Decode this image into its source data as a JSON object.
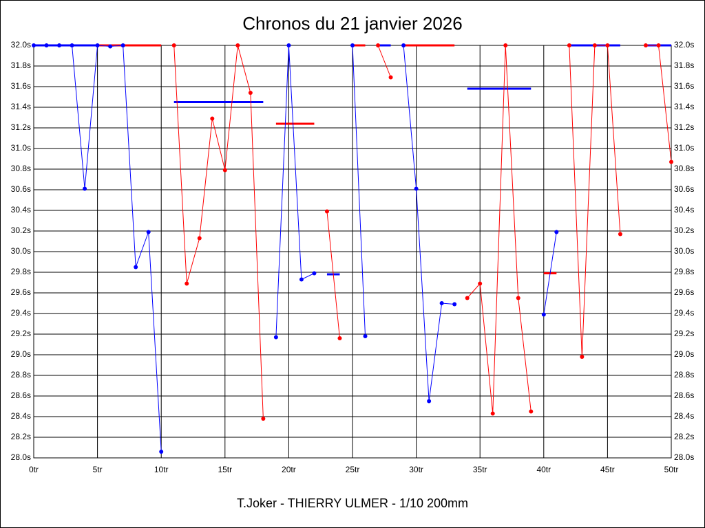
{
  "chart_data": {
    "type": "line",
    "title": "Chronos du 21 janvier 2026",
    "subtitle": "T.Joker - THIERRY ULMER - 1/10 200mm",
    "xlim": [
      0,
      50
    ],
    "xticks": [
      {
        "value": 0,
        "label": "0tr"
      },
      {
        "value": 5,
        "label": "5tr"
      },
      {
        "value": 10,
        "label": "10tr"
      },
      {
        "value": 15,
        "label": "15tr"
      },
      {
        "value": 20,
        "label": "20tr"
      },
      {
        "value": 25,
        "label": "25tr"
      },
      {
        "value": 30,
        "label": "30tr"
      },
      {
        "value": 35,
        "label": "35tr"
      },
      {
        "value": 40,
        "label": "40tr"
      },
      {
        "value": 45,
        "label": "45tr"
      },
      {
        "value": 50,
        "label": "50tr"
      }
    ],
    "ylim": [
      28.0,
      32.0
    ],
    "yticks": [
      {
        "value": 28.0,
        "label": "28.0s"
      },
      {
        "value": 28.2,
        "label": "28.2s"
      },
      {
        "value": 28.4,
        "label": "28.4s"
      },
      {
        "value": 28.6,
        "label": "28.6s"
      },
      {
        "value": 28.8,
        "label": "28.8s"
      },
      {
        "value": 29.0,
        "label": "29.0s"
      },
      {
        "value": 29.2,
        "label": "29.2s"
      },
      {
        "value": 29.4,
        "label": "29.4s"
      },
      {
        "value": 29.6,
        "label": "29.6s"
      },
      {
        "value": 29.8,
        "label": "29.8s"
      },
      {
        "value": 30.0,
        "label": "30.0s"
      },
      {
        "value": 30.2,
        "label": "30.2s"
      },
      {
        "value": 30.4,
        "label": "30.4s"
      },
      {
        "value": 30.6,
        "label": "30.6s"
      },
      {
        "value": 30.8,
        "label": "30.8s"
      },
      {
        "value": 31.0,
        "label": "31.0s"
      },
      {
        "value": 31.2,
        "label": "31.2s"
      },
      {
        "value": 31.4,
        "label": "31.4s"
      },
      {
        "value": 31.6,
        "label": "31.6s"
      },
      {
        "value": 31.8,
        "label": "31.8s"
      },
      {
        "value": 32.0,
        "label": "32.0s"
      }
    ],
    "grid": true,
    "series": [
      {
        "color": "#0000ff",
        "x": [
          0,
          1,
          2,
          3,
          4,
          5,
          6,
          7,
          8,
          9,
          10
        ],
        "values": [
          32.0,
          32.0,
          32.0,
          32.0,
          30.61,
          32.0,
          31.99,
          32.0,
          29.85,
          30.19,
          28.06
        ]
      },
      {
        "color": "#ff0000",
        "x": [
          11,
          12,
          13,
          14,
          15,
          16,
          17,
          18
        ],
        "values": [
          32.0,
          29.69,
          30.13,
          31.29,
          30.79,
          32.0,
          31.54,
          28.38
        ]
      },
      {
        "color": "#0000ff",
        "x": [
          19,
          20,
          21,
          22
        ],
        "values": [
          29.17,
          32.0,
          29.73,
          29.79
        ]
      },
      {
        "color": "#ff0000",
        "x": [
          23,
          24
        ],
        "values": [
          30.39,
          29.16
        ]
      },
      {
        "color": "#0000ff",
        "x": [
          25,
          26
        ],
        "values": [
          32.0,
          29.18
        ]
      },
      {
        "color": "#ff0000",
        "x": [
          27,
          28
        ],
        "values": [
          32.0,
          31.69
        ]
      },
      {
        "color": "#0000ff",
        "x": [
          29,
          30,
          31,
          32,
          33
        ],
        "values": [
          32.0,
          30.61,
          28.55,
          29.5,
          29.49
        ]
      },
      {
        "color": "#ff0000",
        "x": [
          34,
          35,
          36,
          37,
          38,
          39
        ],
        "values": [
          29.55,
          29.69,
          28.43,
          32.0,
          29.55,
          28.45
        ]
      },
      {
        "color": "#0000ff",
        "x": [
          40,
          41
        ],
        "values": [
          29.39,
          30.19
        ]
      },
      {
        "color": "#ff0000",
        "x": [
          42,
          43,
          44,
          45,
          46
        ],
        "values": [
          32.0,
          28.98,
          32.0,
          32.0,
          30.17
        ]
      },
      {
        "color": "#ff0000",
        "x": [
          48,
          49,
          50
        ],
        "values": [
          32.0,
          32.0,
          30.87
        ]
      }
    ],
    "hlines": [
      {
        "color": "#0000ff",
        "x": [
          0,
          5
        ],
        "value": 32.0
      },
      {
        "color": "#ff0000",
        "x": [
          5,
          10
        ],
        "value": 32.0
      },
      {
        "color": "#0000ff",
        "x": [
          11,
          18
        ],
        "value": 31.45
      },
      {
        "color": "#ff0000",
        "x": [
          19,
          22
        ],
        "value": 31.24
      },
      {
        "color": "#0000ff",
        "x": [
          23,
          24
        ],
        "value": 29.78
      },
      {
        "color": "#ff0000",
        "x": [
          25,
          26
        ],
        "value": 32.0
      },
      {
        "color": "#0000ff",
        "x": [
          27,
          28
        ],
        "value": 32.0
      },
      {
        "color": "#ff0000",
        "x": [
          29,
          33
        ],
        "value": 32.0
      },
      {
        "color": "#0000ff",
        "x": [
          34,
          39
        ],
        "value": 31.58
      },
      {
        "color": "#ff0000",
        "x": [
          40,
          41
        ],
        "value": 29.79
      },
      {
        "color": "#0000ff",
        "x": [
          42,
          46
        ],
        "value": 32.0
      },
      {
        "color": "#0000ff",
        "x": [
          48,
          50
        ],
        "value": 32.0
      }
    ]
  }
}
